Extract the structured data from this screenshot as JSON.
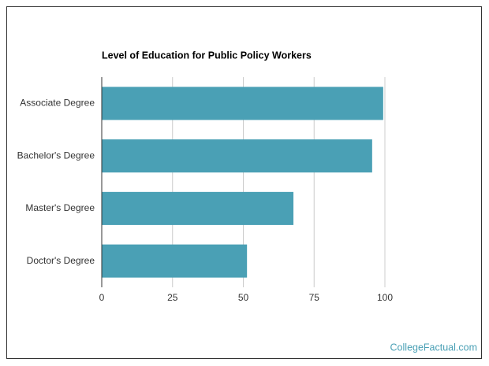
{
  "chart_data": {
    "type": "bar",
    "orientation": "horizontal",
    "title": "Level of Education for Public Policy Workers",
    "categories": [
      "Associate Degree",
      "Bachelor's Degree",
      "Master's Degree",
      "Doctor's Degree"
    ],
    "values": [
      99.4,
      95.5,
      67.7,
      51.3
    ],
    "color": "#4aa0b5",
    "xlim": [
      0,
      100
    ],
    "xticks": [
      0,
      25,
      50,
      75,
      100
    ],
    "grid": true,
    "source": "CollegeFactual.com"
  }
}
